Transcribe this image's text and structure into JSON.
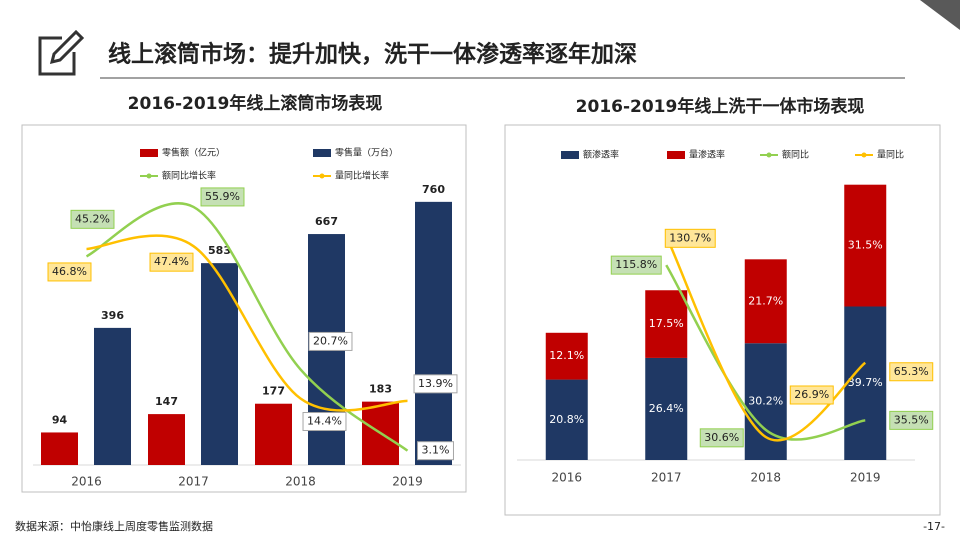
{
  "header": {
    "title": "线上滚筒市场：提升加快，洗干一体渗透率逐年加深"
  },
  "chart_data": [
    {
      "type": "bar_line",
      "title": "2016-2019年线上滚筒市场表现",
      "categories": [
        "2016",
        "2017",
        "2018",
        "2019"
      ],
      "ylim": [
        0,
        800
      ],
      "y2lim": [
        0,
        60
      ],
      "series": [
        {
          "name": "零售额（亿元）",
          "type": "bar",
          "color": "#c00000",
          "values": [
            94,
            147,
            177,
            183
          ]
        },
        {
          "name": "零售量（万台）",
          "type": "bar",
          "color": "#1f3864",
          "values": [
            396,
            583,
            667,
            760
          ]
        },
        {
          "name": "额同比增长率",
          "type": "line",
          "axis": "y2",
          "color": "#92d050",
          "values": [
            45.2,
            55.9,
            20.7,
            3.1
          ],
          "value_labels": [
            "45.2%",
            "55.9%",
            "20.7%",
            "3.1%"
          ]
        },
        {
          "name": "量同比增长率",
          "type": "line",
          "axis": "y2",
          "color": "#ffc000",
          "values": [
            46.8,
            47.4,
            14.4,
            13.9
          ],
          "value_labels": [
            "46.8%",
            "47.4%",
            "14.4%",
            "13.9%"
          ]
        }
      ]
    },
    {
      "type": "stacked_bar_line",
      "title": "2016-2019年线上洗干一体市场表现",
      "categories": [
        "2016",
        "2017",
        "2018",
        "2019"
      ],
      "ylim": [
        0,
        75
      ],
      "y2lim": [
        15,
        165
      ],
      "series": [
        {
          "name": "额渗透率",
          "type": "bar",
          "color": "#1f3864",
          "values": [
            20.8,
            26.4,
            30.2,
            39.7
          ],
          "value_labels": [
            "20.8%",
            "26.4%",
            "30.2%",
            "39.7%"
          ]
        },
        {
          "name": "量渗透率",
          "type": "bar",
          "color": "#c00000",
          "values": [
            12.1,
            17.5,
            21.7,
            31.5
          ],
          "value_labels": [
            "12.1%",
            "17.5%",
            "21.7%",
            "31.5%"
          ]
        },
        {
          "name": "额同比",
          "type": "line",
          "axis": "y2",
          "color": "#92d050",
          "values": [
            null,
            115.8,
            30.6,
            35.5
          ],
          "value_labels": [
            null,
            "115.8%",
            "30.6%",
            "35.5%"
          ]
        },
        {
          "name": "量同比",
          "type": "line",
          "axis": "y2",
          "color": "#ffc000",
          "values": [
            null,
            130.7,
            26.9,
            65.3
          ],
          "value_labels": [
            null,
            "130.7%",
            "26.9%",
            "65.3%"
          ]
        }
      ]
    }
  ],
  "footer": {
    "source": "数据来源：中怡康线上周度零售监测数据",
    "page": "-17-"
  }
}
